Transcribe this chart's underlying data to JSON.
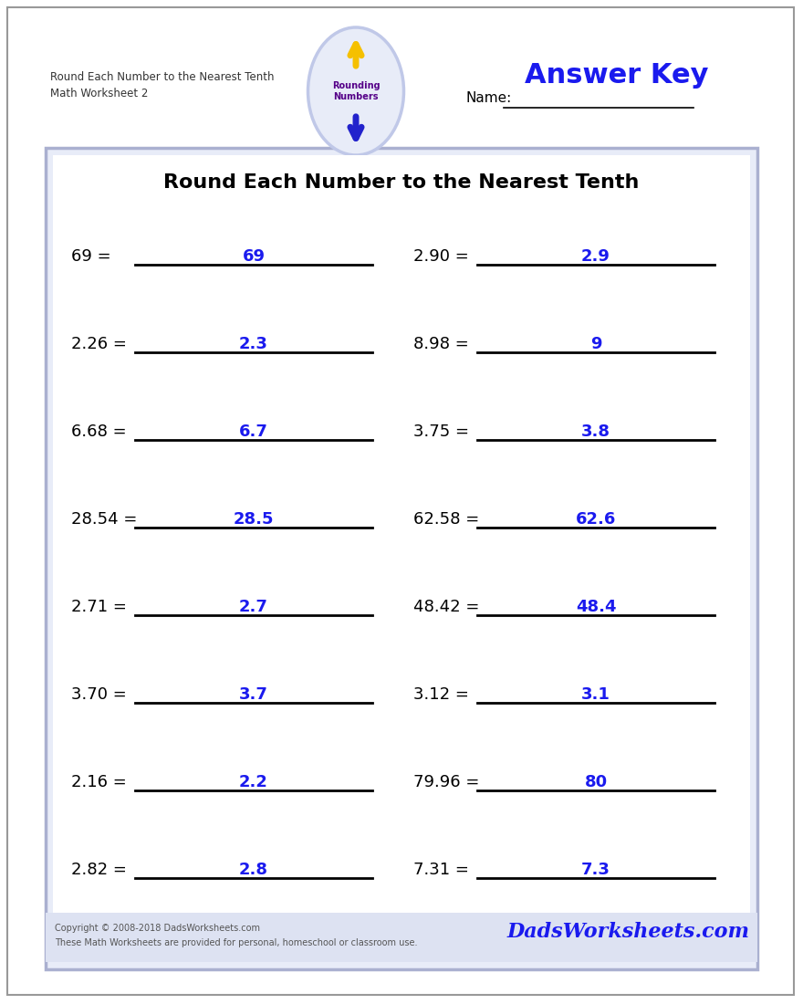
{
  "title": "Round Each Number to the Nearest Tenth",
  "header_line1": "Round Each Number to the Nearest Tenth",
  "header_line2": "Math Worksheet 2",
  "answer_key_text": "Answer Key",
  "name_label": "Name:",
  "problems_left": [
    {
      "question": "69 =",
      "answer": "69"
    },
    {
      "question": "2.26 =",
      "answer": "2.3"
    },
    {
      "question": "6.68 =",
      "answer": "6.7"
    },
    {
      "question": "28.54 =",
      "answer": "28.5"
    },
    {
      "question": "2.71 =",
      "answer": "2.7"
    },
    {
      "question": "3.70 =",
      "answer": "3.7"
    },
    {
      "question": "2.16 =",
      "answer": "2.2"
    },
    {
      "question": "2.82 =",
      "answer": "2.8"
    }
  ],
  "problems_right": [
    {
      "question": "2.90 =",
      "answer": "2.9"
    },
    {
      "question": "8.98 =",
      "answer": "9"
    },
    {
      "question": "3.75 =",
      "answer": "3.8"
    },
    {
      "question": "62.58 =",
      "answer": "62.6"
    },
    {
      "question": "48.42 =",
      "answer": "48.4"
    },
    {
      "question": "3.12 =",
      "answer": "3.1"
    },
    {
      "question": "79.96 =",
      "answer": "80"
    },
    {
      "question": "7.31 =",
      "answer": "7.3"
    }
  ],
  "bg_color": "#ffffff",
  "outer_border_color": "#999999",
  "box_border_color": "#aab0d0",
  "box_fill_color": "#e8ecf8",
  "inner_fill_color": "#ffffff",
  "answer_color": "#1a1aee",
  "question_color": "#000000",
  "title_color": "#000000",
  "answer_key_color": "#1a1aee",
  "footer_bg_color": "#dde2f2",
  "footer_text_color": "#555555",
  "footer_logo_color": "#1a1aee",
  "footer_text1": "Copyright © 2008-2018 DadsWorksheets.com",
  "footer_text2": "These Math Worksheets are provided for personal, homeschool or classroom use.",
  "footer_logo": "DadsWorksheets.com"
}
